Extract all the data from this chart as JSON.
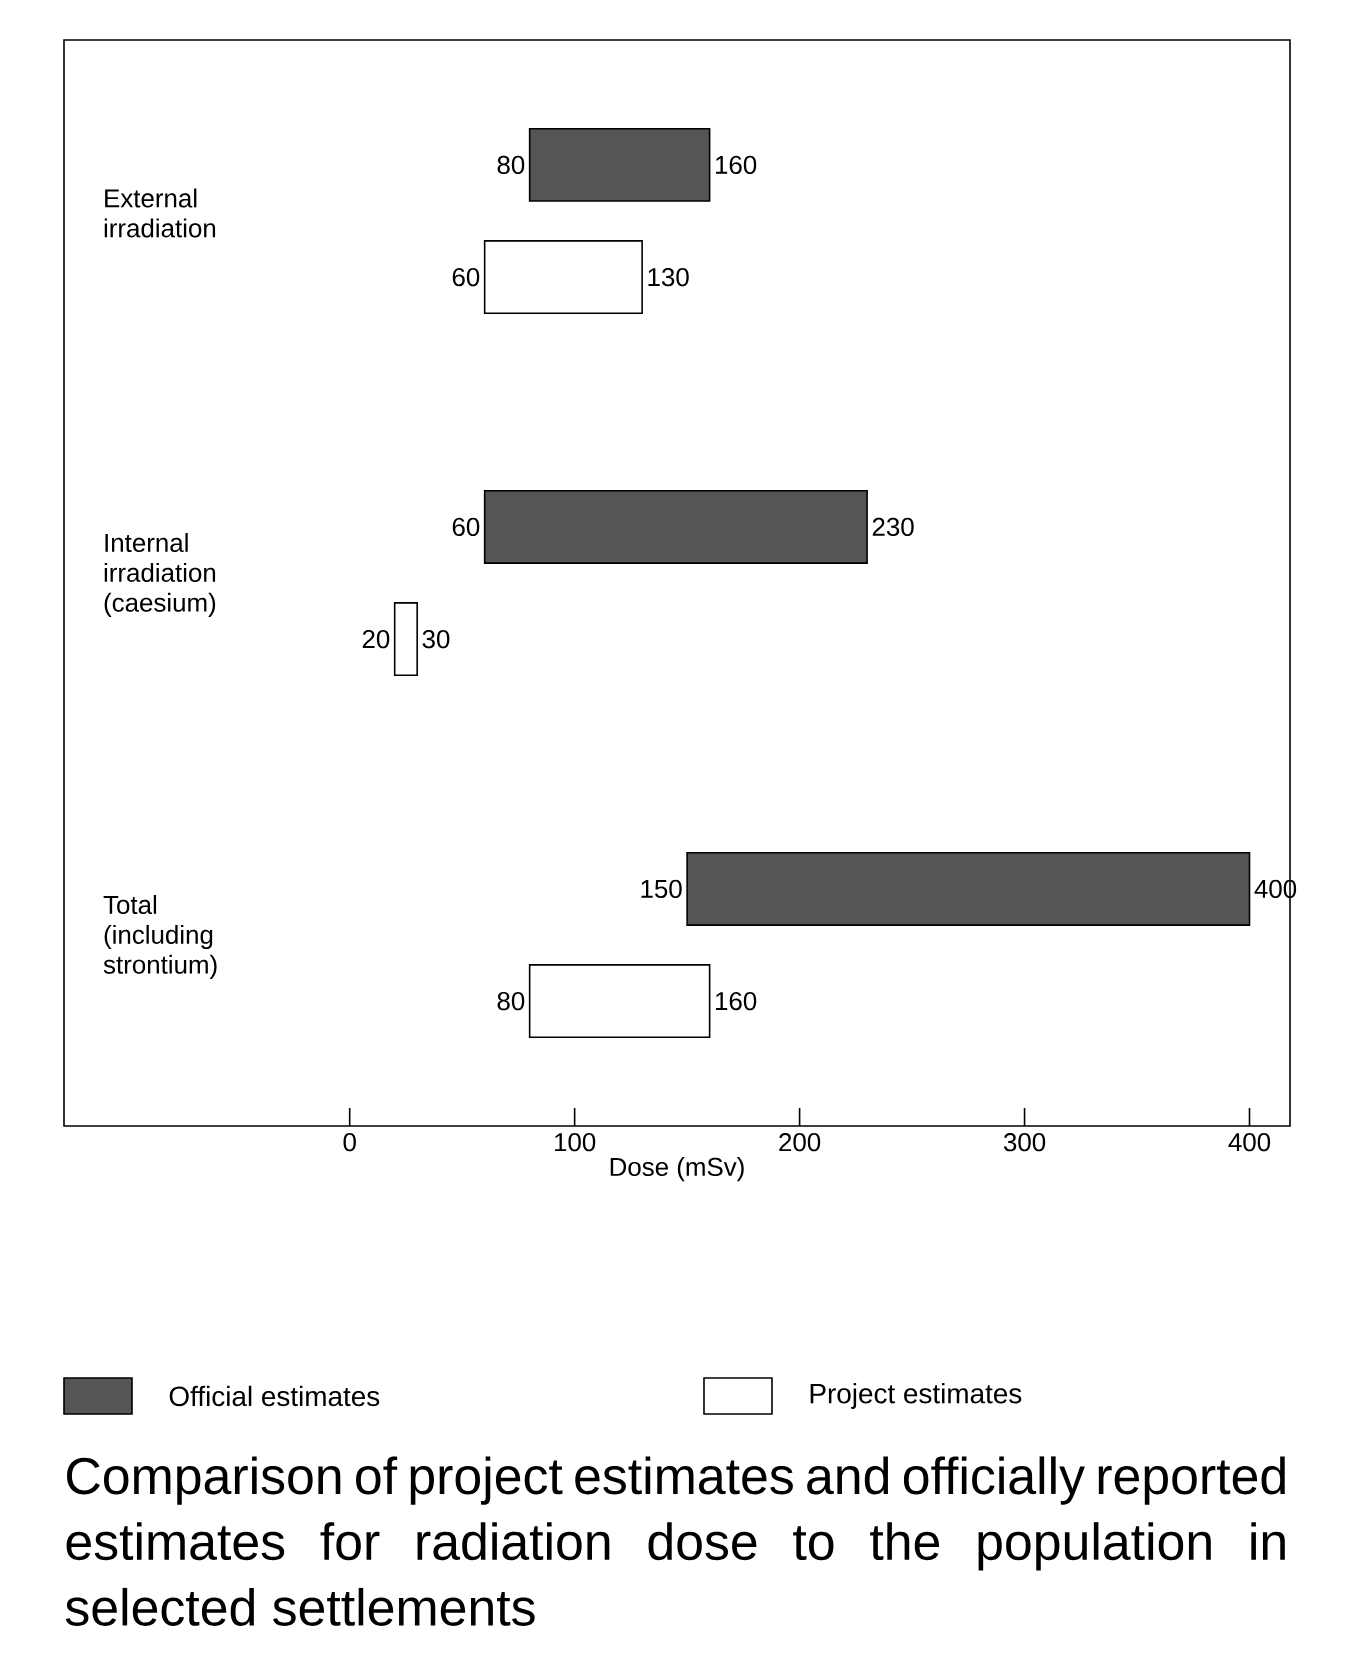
{
  "chart_data": {
    "type": "bar",
    "orientation": "horizontal",
    "title": "Comparison of project estimates and officially reported estimates for radiation dose to the population in selected settlements",
    "xlabel": "Dose (mSv)",
    "categories": [
      "External irradiation",
      "Internal irradiation (caesium)",
      "Total (including strontium)"
    ],
    "series": [
      {
        "name": "Official estimates",
        "color": "#555555",
        "base": [
          80,
          60,
          150
        ],
        "values": [
          80,
          170,
          250
        ]
      },
      {
        "name": "Project estimates",
        "color": "#ffffff",
        "base": [
          60,
          20,
          80
        ],
        "values": [
          70,
          10,
          80
        ]
      }
    ],
    "xlim": [
      -127,
      418
    ],
    "xticks": [
      0,
      100,
      200,
      300,
      400
    ],
    "legend": "bottom",
    "annotations": [
      "80",
      "160",
      "60",
      "230",
      "150",
      "400",
      "60",
      "130",
      "20",
      "30",
      "80",
      "160"
    ]
  }
}
